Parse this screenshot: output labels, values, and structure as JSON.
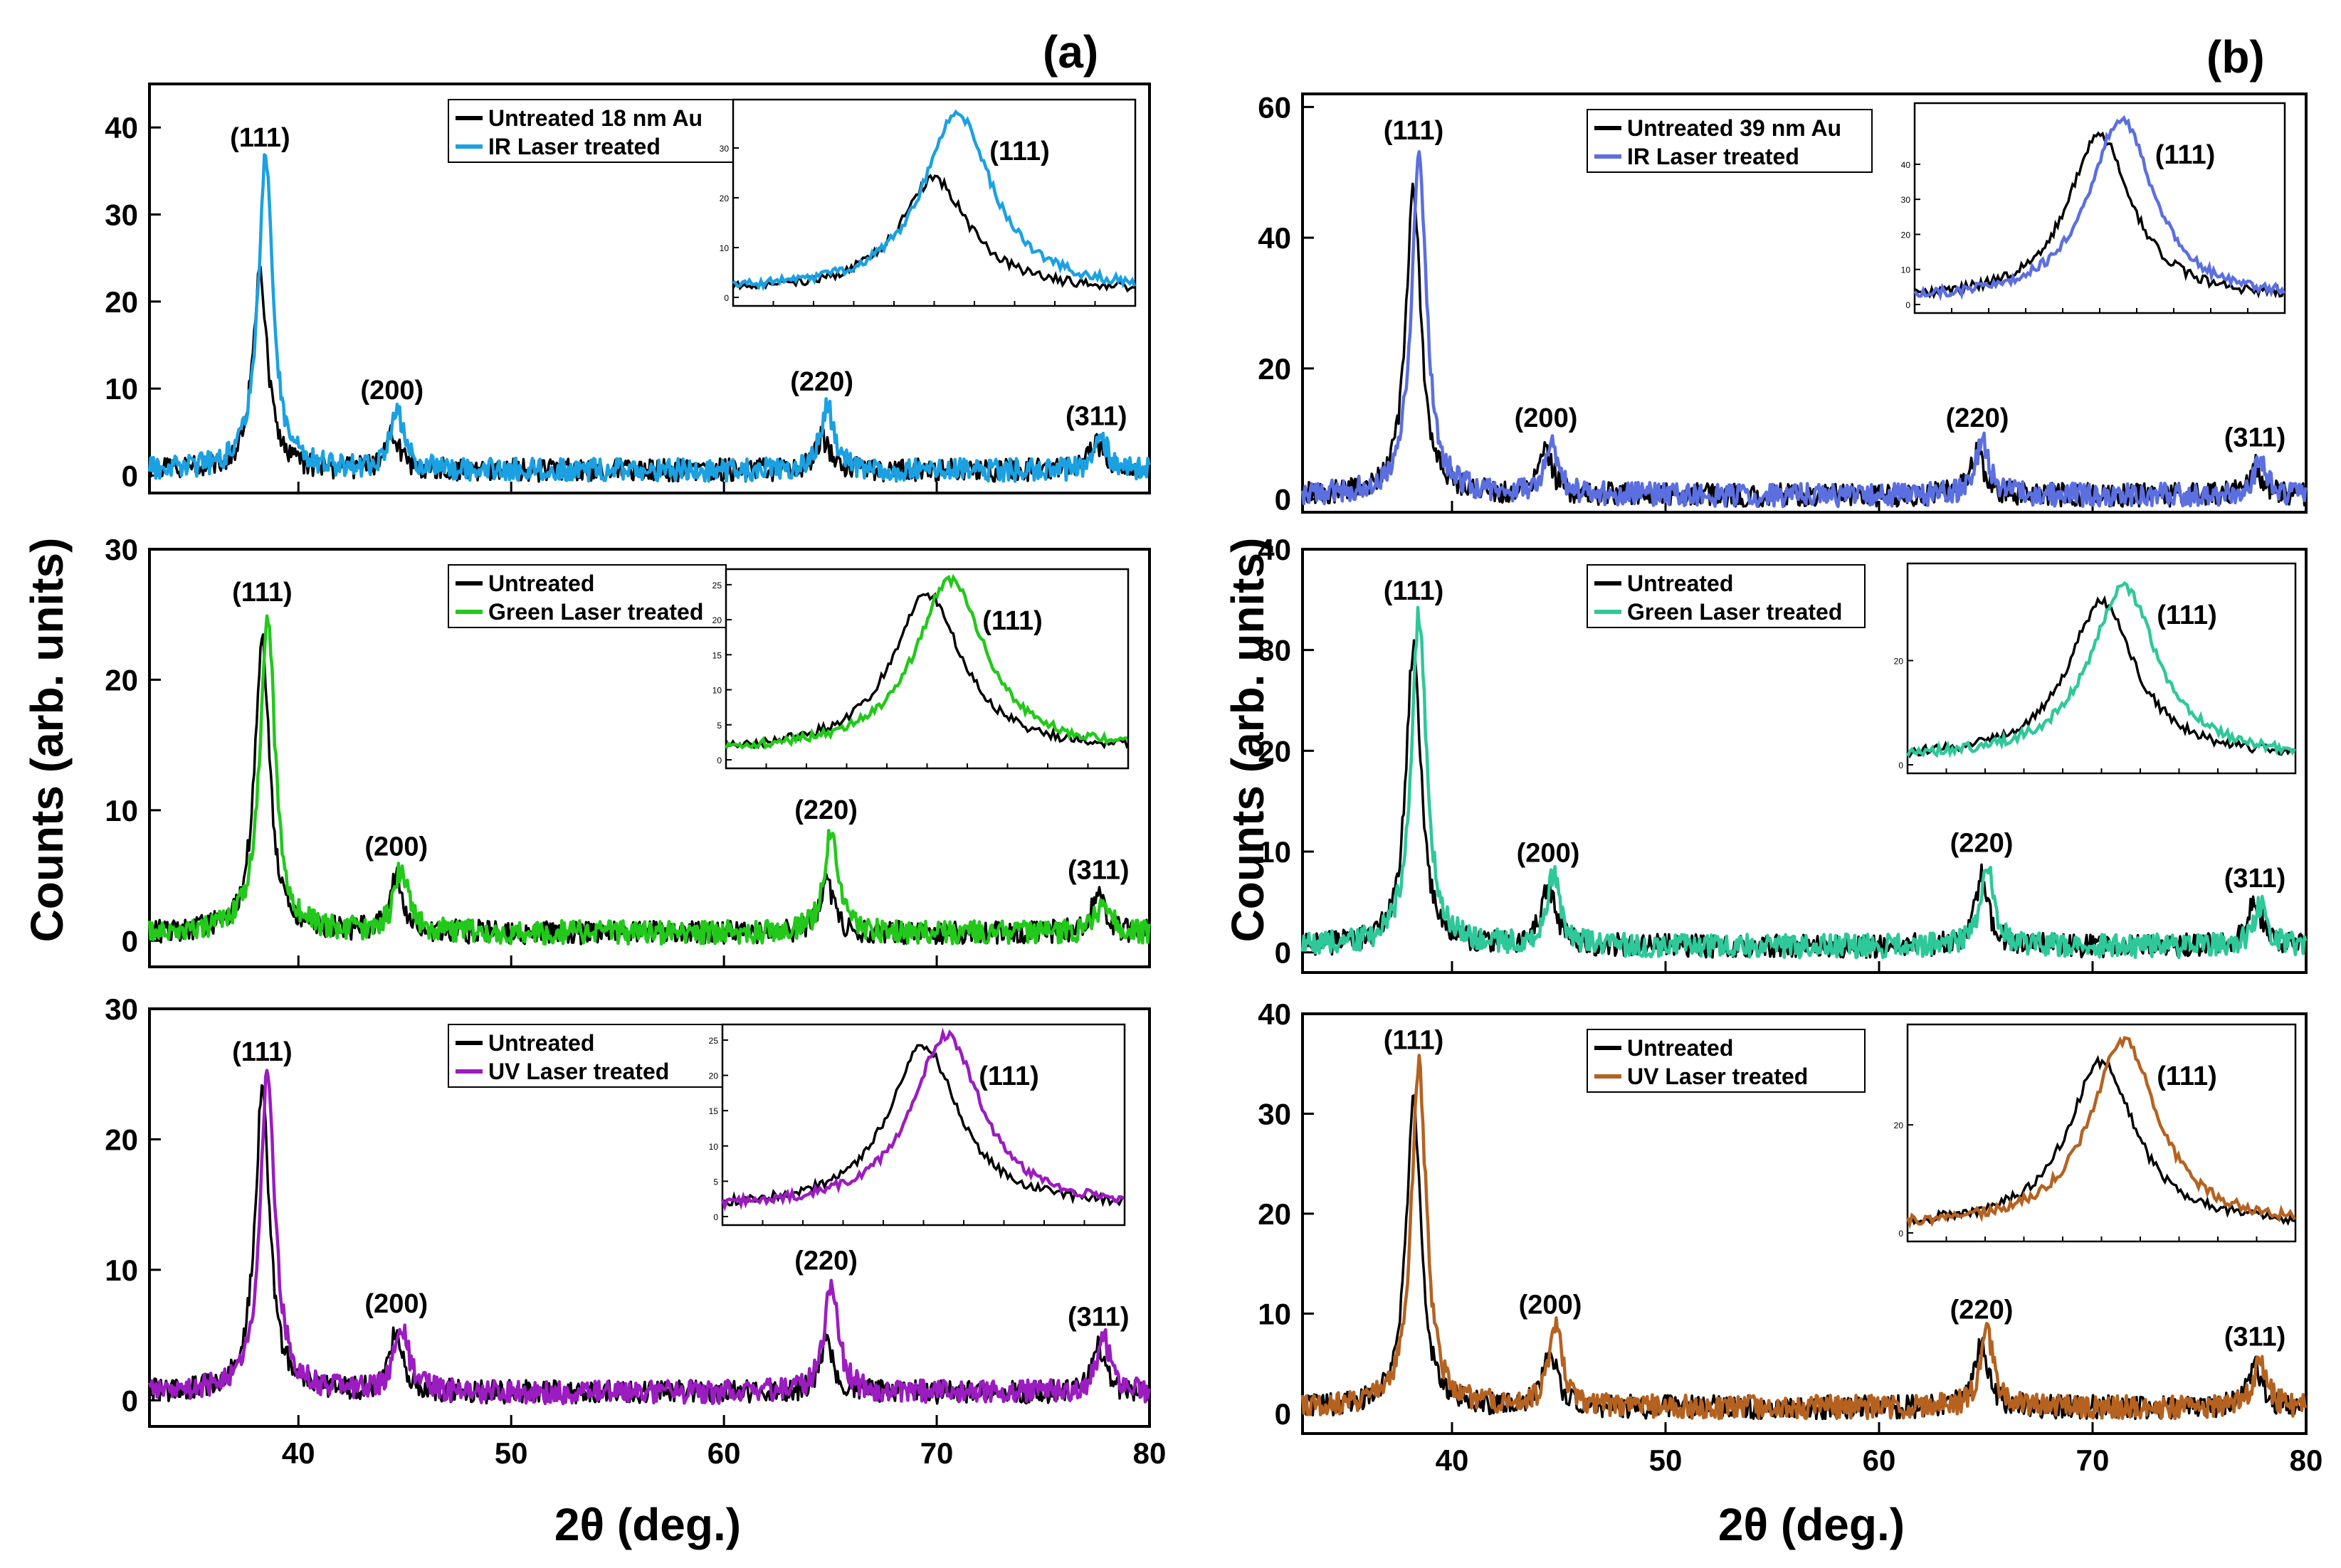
{
  "figure": {
    "panel_labels": [
      "(a)",
      "(b)"
    ],
    "x_title": "2θ (deg.)",
    "y_title": "Counts (arb. units)"
  },
  "chart_data": [
    {
      "type": "line",
      "panel": "(a)",
      "row": 1,
      "xlim": [
        33,
        80
      ],
      "ylim": [
        -2,
        45
      ],
      "yticks": [
        0,
        10,
        20,
        30,
        40
      ],
      "xticks": [
        40,
        50,
        60,
        70,
        80
      ],
      "legend": [
        "Untreated 18 nm Au",
        "IR Laser treated"
      ],
      "colors": {
        "untreated": "#000000",
        "treated": "#1ba1e2"
      },
      "peaks": [
        {
          "label": "(111)",
          "x": 38.2,
          "untreated": 22.5,
          "treated": 35.5
        },
        {
          "label": "(200)",
          "x": 44.4,
          "untreated": 4.2,
          "treated": 6.5
        },
        {
          "label": "(220)",
          "x": 64.6,
          "untreated": 3.8,
          "treated": 7.5
        },
        {
          "label": "(311)",
          "x": 77.5,
          "untreated": 3.0,
          "treated": 3.5
        }
      ],
      "inset": {
        "label": "(111)",
        "ylim": [
          0,
          38
        ],
        "ytick_labels": [
          "0",
          "10",
          "20",
          "30"
        ],
        "yticks": [
          0,
          10,
          20,
          30
        ]
      }
    },
    {
      "type": "line",
      "panel": "(a)",
      "row": 2,
      "xlim": [
        33,
        80
      ],
      "ylim": [
        -2,
        30
      ],
      "yticks": [
        0,
        10,
        20,
        30
      ],
      "xticks": [
        40,
        50,
        60,
        70,
        80
      ],
      "legend": [
        "Untreated",
        "Green Laser treated"
      ],
      "colors": {
        "untreated": "#000000",
        "treated": "#22c91a"
      },
      "peaks": [
        {
          "label": "(111)",
          "x": 38.3,
          "untreated": 22.5,
          "treated": 24.5
        },
        {
          "label": "(200)",
          "x": 44.6,
          "untreated": 4.2,
          "treated": 5.0
        },
        {
          "label": "(220)",
          "x": 64.8,
          "untreated": 4.0,
          "treated": 7.8
        },
        {
          "label": "(311)",
          "x": 77.6,
          "untreated": 3.2,
          "treated": 2.6
        }
      ],
      "inset": {
        "label": "(111)",
        "ylim": [
          0,
          26
        ],
        "ytick_labels": [
          "0",
          "5",
          "10",
          "15",
          "20",
          "25"
        ],
        "yticks": [
          0,
          5,
          10,
          15,
          20,
          25
        ]
      }
    },
    {
      "type": "line",
      "panel": "(a)",
      "row": 3,
      "xlim": [
        33,
        80
      ],
      "ylim": [
        -2,
        30
      ],
      "yticks": [
        0,
        10,
        20,
        30
      ],
      "xticks": [
        40,
        50,
        60,
        70,
        80
      ],
      "legend": [
        "Untreated",
        "UV Laser treated"
      ],
      "colors": {
        "untreated": "#000000",
        "treated": "#9b1cc0"
      },
      "peaks": [
        {
          "label": "(111)",
          "x": 38.3,
          "untreated": 23.0,
          "treated": 24.5
        },
        {
          "label": "(200)",
          "x": 44.6,
          "untreated": 4.5,
          "treated": 5.2
        },
        {
          "label": "(220)",
          "x": 64.8,
          "untreated": 4.0,
          "treated": 8.5
        },
        {
          "label": "(311)",
          "x": 77.6,
          "untreated": 3.4,
          "treated": 4.2
        }
      ],
      "inset": {
        "label": "(111)",
        "ylim": [
          0,
          26
        ],
        "ytick_labels": [
          "0",
          "5",
          "10",
          "15",
          "20",
          "25"
        ],
        "yticks": [
          0,
          5,
          10,
          15,
          20,
          25
        ]
      }
    },
    {
      "type": "line",
      "panel": "(b)",
      "row": 1,
      "xlim": [
        33,
        80
      ],
      "ylim": [
        -2,
        62
      ],
      "yticks": [
        0,
        20,
        40,
        60
      ],
      "xticks": [
        40,
        50,
        60,
        70,
        80
      ],
      "legend": [
        "Untreated 39 nm Au",
        "IR Laser treated"
      ],
      "colors": {
        "untreated": "#000000",
        "treated": "#5b6fe0"
      },
      "peaks": [
        {
          "label": "(111)",
          "x": 38.2,
          "untreated": 47.0,
          "treated": 52.0
        },
        {
          "label": "(200)",
          "x": 44.4,
          "untreated": 6.5,
          "treated": 8.0
        },
        {
          "label": "(220)",
          "x": 64.6,
          "untreated": 6.5,
          "treated": 8.0
        },
        {
          "label": "(311)",
          "x": 77.6,
          "untreated": 4.5,
          "treated": 5.0
        }
      ],
      "inset": {
        "label": "(111)",
        "ylim": [
          0,
          55
        ],
        "ytick_labels": [
          "0",
          "10",
          "20",
          "30",
          "40"
        ],
        "yticks": [
          0,
          10,
          20,
          30,
          40
        ]
      }
    },
    {
      "type": "line",
      "panel": "(b)",
      "row": 2,
      "xlim": [
        33,
        80
      ],
      "ylim": [
        -2,
        40
      ],
      "yticks": [
        0,
        10,
        20,
        30,
        40
      ],
      "xticks": [
        40,
        50,
        60,
        70,
        80
      ],
      "legend": [
        "Untreated",
        "Green Laser treated"
      ],
      "colors": {
        "untreated": "#000000",
        "treated": "#2ec89a"
      },
      "peaks": [
        {
          "label": "(111)",
          "x": 38.2,
          "untreated": 30.0,
          "treated": 33.0
        },
        {
          "label": "(200)",
          "x": 44.5,
          "untreated": 6.0,
          "treated": 7.0
        },
        {
          "label": "(220)",
          "x": 64.8,
          "untreated": 7.0,
          "treated": 8.0
        },
        {
          "label": "(311)",
          "x": 77.6,
          "untreated": 4.5,
          "treated": 4.0
        }
      ],
      "inset": {
        "label": "(111)",
        "ylim": [
          0,
          37
        ],
        "ytick_labels": [
          "0",
          "20"
        ],
        "yticks": [
          0,
          20
        ]
      }
    },
    {
      "type": "line",
      "panel": "(b)",
      "row": 3,
      "xlim": [
        33,
        80
      ],
      "ylim": [
        -2,
        40
      ],
      "yticks": [
        0,
        10,
        20,
        30,
        40
      ],
      "xticks": [
        40,
        50,
        60,
        70,
        80
      ],
      "legend": [
        "Untreated",
        "UV Laser treated"
      ],
      "colors": {
        "untreated": "#000000",
        "treated": "#b56221"
      },
      "peaks": [
        {
          "label": "(111)",
          "x": 38.2,
          "untreated": 30.5,
          "treated": 34.5
        },
        {
          "label": "(200)",
          "x": 44.6,
          "untreated": 5.5,
          "treated": 8.0
        },
        {
          "label": "(220)",
          "x": 64.8,
          "untreated": 6.5,
          "treated": 7.5
        },
        {
          "label": "(311)",
          "x": 77.6,
          "untreated": 4.0,
          "treated": 4.8
        }
      ],
      "inset": {
        "label": "(111)",
        "ylim": [
          0,
          37
        ],
        "ytick_labels": [
          "0",
          "20"
        ],
        "yticks": [
          0,
          20
        ]
      }
    }
  ]
}
